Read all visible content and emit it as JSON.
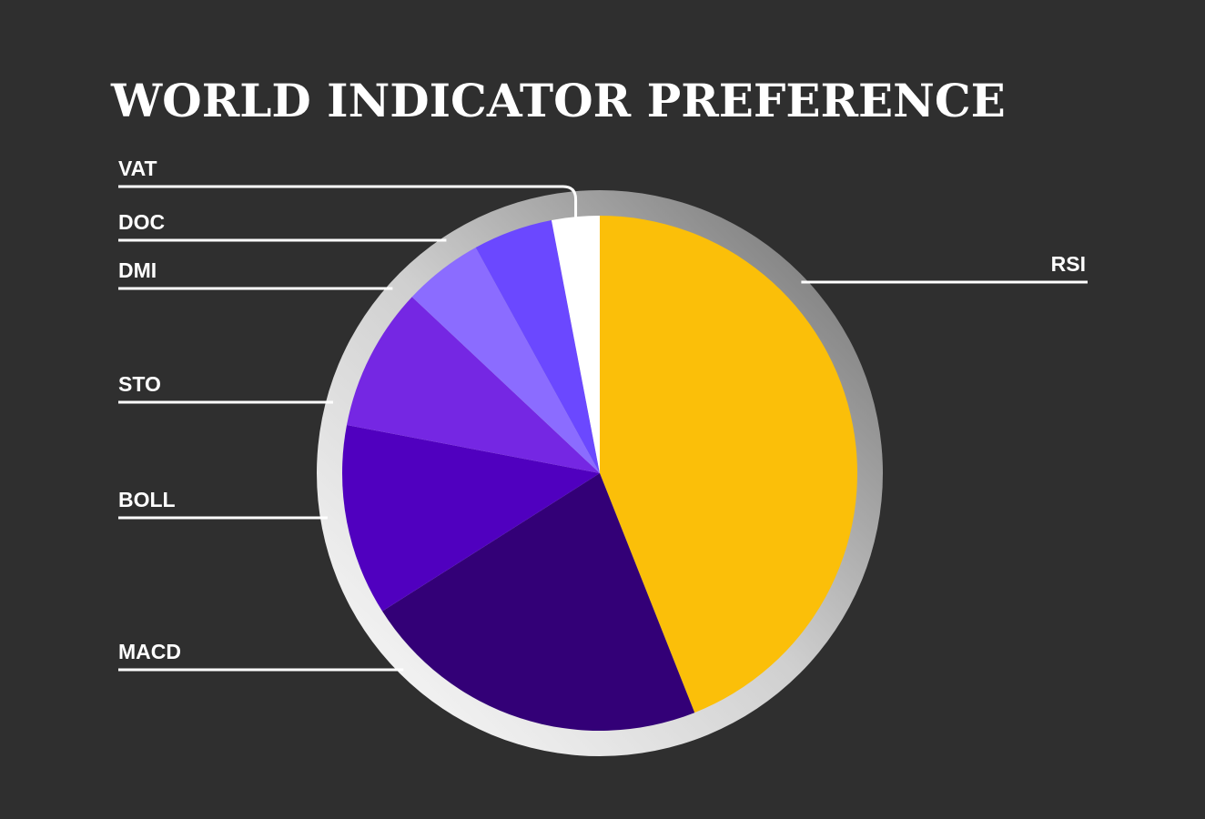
{
  "chart_data": {
    "type": "pie",
    "title": "WORLD INDICATOR PREFERENCE",
    "categories": [
      "RSI",
      "MACD",
      "BOLL",
      "STO",
      "DMI",
      "DOC",
      "VAT"
    ],
    "values": [
      44,
      22,
      12,
      9,
      5,
      5,
      3
    ],
    "colors": [
      "#fbbf09",
      "#330077",
      "#5000bf",
      "#7527e3",
      "#8b6cff",
      "#6b48ff",
      "#ffffff"
    ]
  }
}
